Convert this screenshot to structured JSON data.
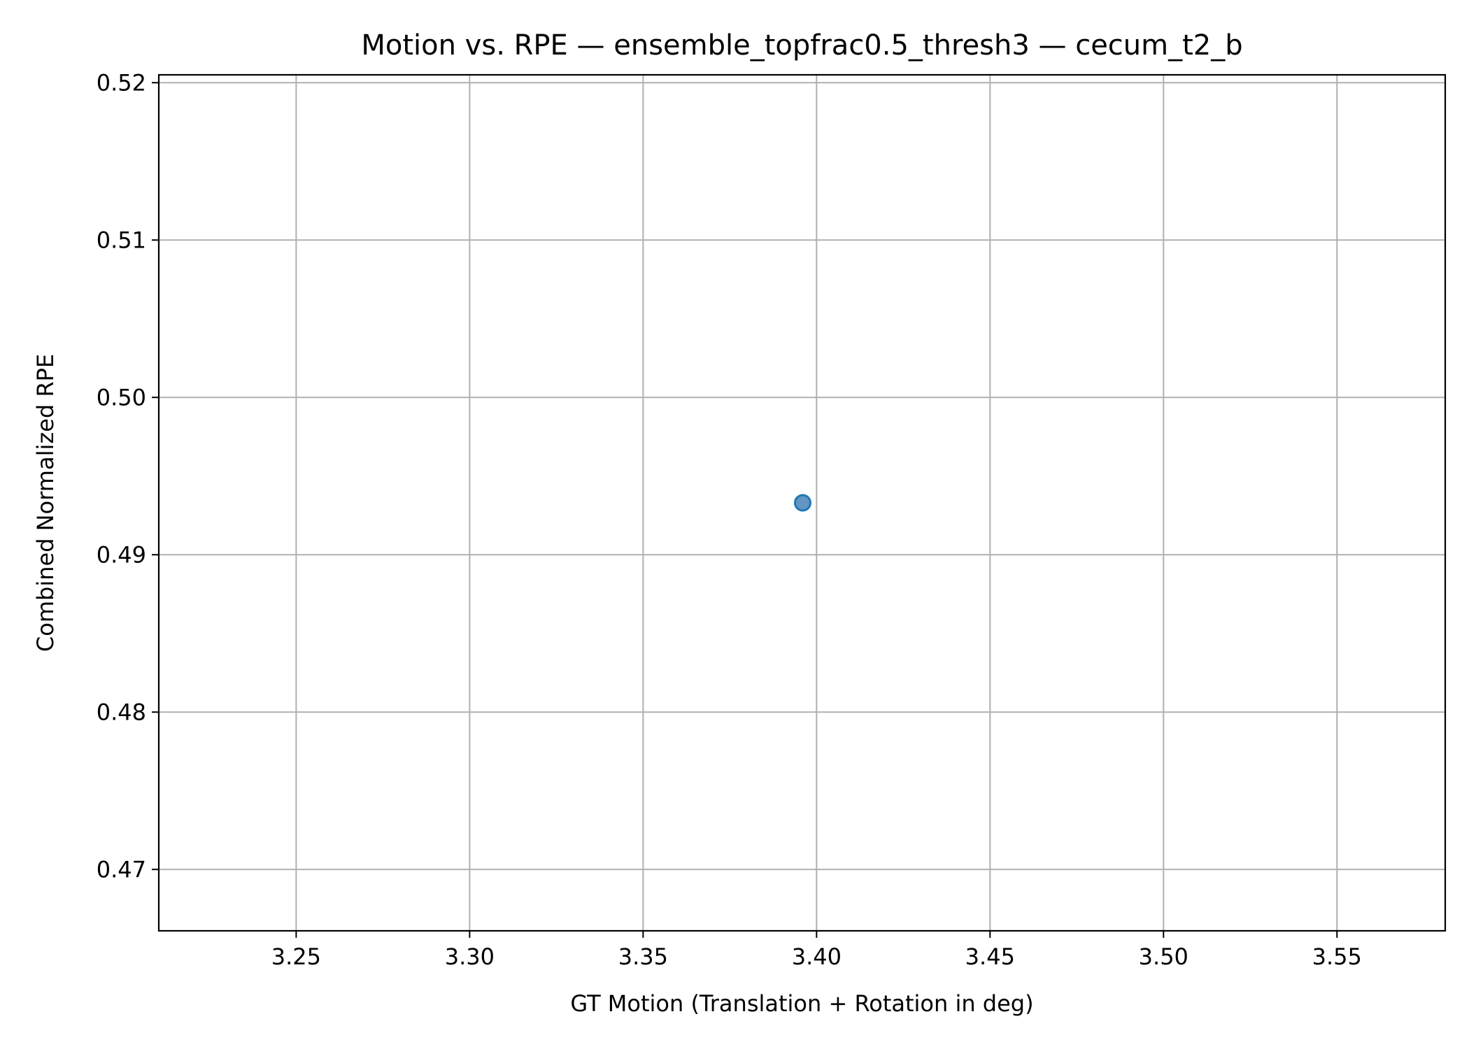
{
  "chart_data": {
    "type": "scatter",
    "title": "Motion vs. RPE — ensemble_topfrac0.5_thresh3 — cecum_t2_b",
    "xlabel": "GT Motion (Translation + Rotation in deg)",
    "ylabel": "Combined Normalized RPE",
    "xlim": [
      3.2104,
      3.5812
    ],
    "ylim": [
      0.4661,
      0.5205
    ],
    "xticks": [
      3.25,
      3.3,
      3.35,
      3.4,
      3.45,
      3.5,
      3.55
    ],
    "xtick_labels": [
      "3.25",
      "3.30",
      "3.35",
      "3.40",
      "3.45",
      "3.50",
      "3.55"
    ],
    "yticks": [
      0.47,
      0.48,
      0.49,
      0.5,
      0.51,
      0.52
    ],
    "ytick_labels": [
      "0.47",
      "0.48",
      "0.49",
      "0.50",
      "0.51",
      "0.52"
    ],
    "grid": true,
    "legend": "none",
    "points": [
      {
        "x": 3.396,
        "y": 0.4933
      }
    ],
    "colors": {
      "marker_fill": "#5b8fbf",
      "marker_edge": "#1f77b4",
      "grid": "#b0b0b0",
      "axes": "#000000"
    }
  }
}
